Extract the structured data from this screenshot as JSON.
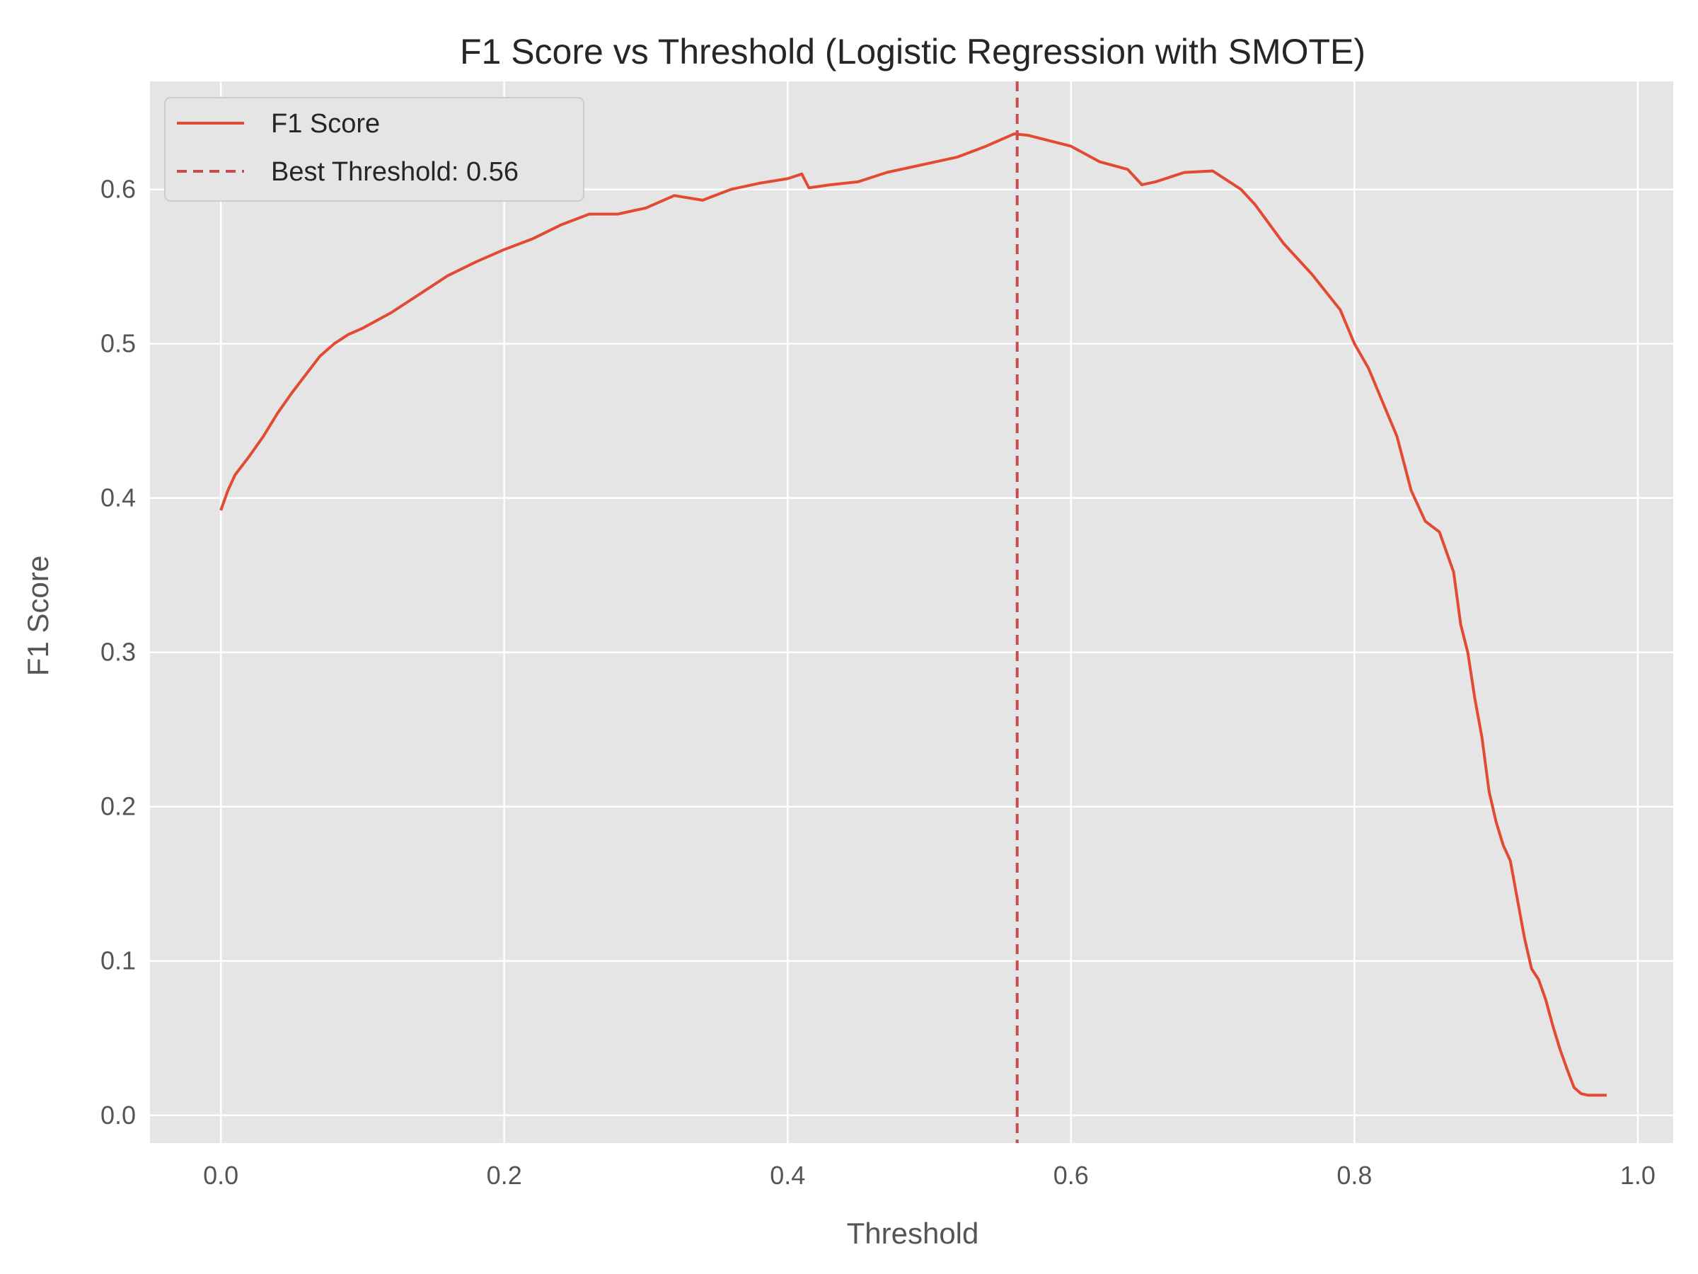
{
  "chart_data": {
    "type": "line",
    "title": "F1 Score vs Threshold (Logistic Regression with SMOTE)",
    "xlabel": "Threshold",
    "ylabel": "F1 Score",
    "xlim": [
      -0.05,
      1.025
    ],
    "ylim": [
      -0.018,
      0.67
    ],
    "xticks": [
      0.0,
      0.2,
      0.4,
      0.6,
      0.8,
      1.0
    ],
    "xtick_labels": [
      "0.0",
      "0.2",
      "0.4",
      "0.6",
      "0.8",
      "1.0"
    ],
    "yticks": [
      0.0,
      0.1,
      0.2,
      0.3,
      0.4,
      0.5,
      0.6
    ],
    "ytick_labels": [
      "0.0",
      "0.1",
      "0.2",
      "0.3",
      "0.4",
      "0.5",
      "0.6"
    ],
    "grid": true,
    "legend_position": "top-left",
    "colors": {
      "background": "#e5e5e5",
      "grid": "#ffffff",
      "line": "#e24a33",
      "best_line": "#c44e52"
    },
    "series": [
      {
        "name": "F1 Score",
        "x": [
          0.0,
          0.005,
          0.01,
          0.02,
          0.03,
          0.04,
          0.05,
          0.06,
          0.07,
          0.08,
          0.09,
          0.1,
          0.12,
          0.14,
          0.16,
          0.18,
          0.2,
          0.22,
          0.24,
          0.26,
          0.28,
          0.3,
          0.32,
          0.34,
          0.36,
          0.38,
          0.4,
          0.41,
          0.415,
          0.43,
          0.45,
          0.47,
          0.5,
          0.52,
          0.54,
          0.56,
          0.57,
          0.6,
          0.62,
          0.64,
          0.65,
          0.66,
          0.68,
          0.7,
          0.72,
          0.73,
          0.75,
          0.77,
          0.79,
          0.8,
          0.81,
          0.82,
          0.83,
          0.84,
          0.85,
          0.86,
          0.87,
          0.875,
          0.88,
          0.885,
          0.89,
          0.895,
          0.9,
          0.905,
          0.91,
          0.915,
          0.92,
          0.925,
          0.93,
          0.935,
          0.94,
          0.945,
          0.95,
          0.955,
          0.96,
          0.965,
          0.97,
          0.978
        ],
        "values": [
          0.392,
          0.405,
          0.415,
          0.427,
          0.44,
          0.455,
          0.468,
          0.48,
          0.492,
          0.5,
          0.506,
          0.51,
          0.52,
          0.532,
          0.544,
          0.553,
          0.561,
          0.568,
          0.577,
          0.584,
          0.584,
          0.588,
          0.596,
          0.593,
          0.6,
          0.604,
          0.607,
          0.61,
          0.601,
          0.603,
          0.605,
          0.611,
          0.617,
          0.621,
          0.628,
          0.636,
          0.635,
          0.628,
          0.618,
          0.613,
          0.603,
          0.605,
          0.611,
          0.612,
          0.6,
          0.59,
          0.565,
          0.545,
          0.522,
          0.5,
          0.484,
          0.462,
          0.44,
          0.405,
          0.385,
          0.378,
          0.352,
          0.318,
          0.3,
          0.27,
          0.245,
          0.21,
          0.19,
          0.175,
          0.165,
          0.14,
          0.115,
          0.095,
          0.088,
          0.075,
          0.058,
          0.043,
          0.03,
          0.018,
          0.014,
          0.013,
          0.013,
          0.013
        ]
      }
    ],
    "best_threshold": {
      "label": "Best Threshold: 0.56",
      "x": 0.562
    }
  }
}
